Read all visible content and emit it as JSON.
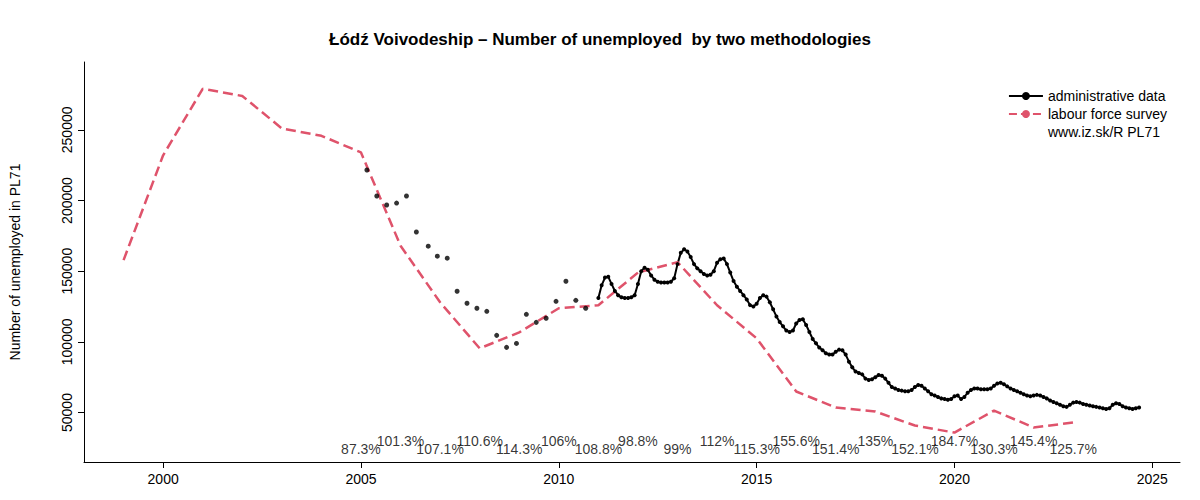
{
  "chart_data": {
    "type": "line",
    "title": "Łódź Voivodeship – Number of unemployed  by two methodologies",
    "y_label": "Number of unemployed in PL71",
    "source_note": "www.iz.sk/R PL71",
    "legend": "topright",
    "grid": false,
    "xlim": [
      1998,
      2025.7
    ],
    "xticks": [
      2000,
      2005,
      2010,
      2015,
      2020,
      2025
    ],
    "ylim": [
      15000,
      298000
    ],
    "yticks": [
      50000,
      100000,
      150000,
      200000,
      250000
    ],
    "series": [
      {
        "name": "administrative data",
        "type": "line",
        "color": "#000000",
        "marker": "circle",
        "line_style": "solid",
        "x": [
          2011.0,
          2011.083,
          2011.167,
          2011.25,
          2011.333,
          2011.417,
          2011.5,
          2011.583,
          2011.667,
          2011.75,
          2011.833,
          2011.917,
          2012.0,
          2012.083,
          2012.167,
          2012.25,
          2012.333,
          2012.417,
          2012.5,
          2012.583,
          2012.667,
          2012.75,
          2012.833,
          2012.917,
          2013.0,
          2013.083,
          2013.167,
          2013.25,
          2013.333,
          2013.417,
          2013.5,
          2013.583,
          2013.667,
          2013.75,
          2013.833,
          2013.917,
          2014.0,
          2014.083,
          2014.167,
          2014.25,
          2014.333,
          2014.417,
          2014.5,
          2014.583,
          2014.667,
          2014.75,
          2014.833,
          2014.917,
          2015.0,
          2015.083,
          2015.167,
          2015.25,
          2015.333,
          2015.417,
          2015.5,
          2015.583,
          2015.667,
          2015.75,
          2015.833,
          2015.917,
          2016.0,
          2016.083,
          2016.167,
          2016.25,
          2016.333,
          2016.417,
          2016.5,
          2016.583,
          2016.667,
          2016.75,
          2016.833,
          2016.917,
          2017.0,
          2017.083,
          2017.167,
          2017.25,
          2017.333,
          2017.417,
          2017.5,
          2017.583,
          2017.667,
          2017.75,
          2017.833,
          2017.917,
          2018.0,
          2018.083,
          2018.167,
          2018.25,
          2018.333,
          2018.417,
          2018.5,
          2018.583,
          2018.667,
          2018.75,
          2018.833,
          2018.917,
          2019.0,
          2019.083,
          2019.167,
          2019.25,
          2019.333,
          2019.417,
          2019.5,
          2019.583,
          2019.667,
          2019.75,
          2019.833,
          2019.917,
          2020.0,
          2020.083,
          2020.167,
          2020.25,
          2020.333,
          2020.417,
          2020.5,
          2020.583,
          2020.667,
          2020.75,
          2020.833,
          2020.917,
          2021.0,
          2021.083,
          2021.167,
          2021.25,
          2021.333,
          2021.417,
          2021.5,
          2021.583,
          2021.667,
          2021.75,
          2021.833,
          2021.917,
          2022.0,
          2022.083,
          2022.167,
          2022.25,
          2022.333,
          2022.417,
          2022.5,
          2022.583,
          2022.667,
          2022.75,
          2022.833,
          2022.917,
          2023.0,
          2023.083,
          2023.167,
          2023.25,
          2023.333,
          2023.417,
          2023.5,
          2023.583,
          2023.667,
          2023.75,
          2023.833,
          2023.917,
          2024.0,
          2024.083,
          2024.167,
          2024.25,
          2024.333,
          2024.417,
          2024.5,
          2024.583,
          2024.667
        ],
        "values": [
          131000,
          140000,
          145500,
          146000,
          141000,
          136000,
          133000,
          131500,
          131000,
          131000,
          131500,
          133000,
          141000,
          150000,
          152500,
          151000,
          147000,
          144000,
          142500,
          142000,
          142000,
          142000,
          142500,
          145000,
          155000,
          163000,
          165500,
          164000,
          160000,
          155000,
          152000,
          150000,
          148000,
          147000,
          147500,
          150000,
          156000,
          158500,
          159000,
          155000,
          149000,
          143000,
          139000,
          136000,
          133000,
          130000,
          126000,
          125000,
          127000,
          131000,
          133000,
          132000,
          128000,
          123000,
          118000,
          114000,
          111000,
          108000,
          107000,
          108000,
          113000,
          115500,
          116000,
          112000,
          107000,
          102000,
          99000,
          96000,
          94000,
          92000,
          91000,
          91000,
          93000,
          94500,
          94000,
          91000,
          86000,
          82000,
          79000,
          78000,
          77000,
          74000,
          73000,
          73500,
          75000,
          76500,
          76000,
          74000,
          71000,
          68000,
          67000,
          66000,
          65500,
          65000,
          65000,
          66000,
          68000,
          69500,
          69000,
          67000,
          65000,
          63000,
          62000,
          61000,
          60000,
          59500,
          59000,
          59500,
          61500,
          62000,
          59500,
          61000,
          64000,
          66000,
          67000,
          67000,
          66500,
          66500,
          66500,
          67000,
          69000,
          70500,
          71000,
          70000,
          68500,
          67000,
          66000,
          65000,
          64000,
          63000,
          62000,
          61500,
          62000,
          62500,
          62000,
          61000,
          60000,
          58500,
          57500,
          56500,
          55500,
          54500,
          54000,
          55500,
          57000,
          57500,
          57000,
          56000,
          55500,
          55000,
          54500,
          54000,
          53500,
          53000,
          52500,
          53000,
          55500,
          56500,
          56000,
          54500,
          53500,
          53000,
          52500,
          53000,
          53500
        ]
      },
      {
        "name": "administrative data",
        "type": "scatter",
        "color": "#000000",
        "marker": "circle",
        "x": [
          2005.15,
          2005.4,
          2005.65,
          2005.9,
          2006.15,
          2006.4,
          2006.7,
          2006.93,
          2007.18,
          2007.43,
          2007.68,
          2007.93,
          2008.18,
          2008.43,
          2008.68,
          2008.93,
          2009.18,
          2009.43,
          2009.68,
          2009.93,
          2010.18,
          2010.43,
          2010.68
        ],
        "values": [
          221600,
          203200,
          196800,
          198200,
          203200,
          177700,
          167700,
          160600,
          159200,
          135800,
          127300,
          123800,
          121600,
          104600,
          96100,
          98900,
          119500,
          113800,
          116700,
          128700,
          142900,
          129400,
          123800
        ]
      },
      {
        "name": "labour force survey",
        "type": "line",
        "color": "#DF536B",
        "marker": "none",
        "line_style": "dashed",
        "x": [
          1999,
          2000,
          2001,
          2002,
          2003,
          2004,
          2005,
          2006,
          2007,
          2008,
          2009,
          2010,
          2011,
          2012,
          2013,
          2014,
          2015,
          2016,
          2017,
          2018,
          2019,
          2020,
          2021,
          2022,
          2023
        ],
        "values": [
          157800,
          232000,
          279000,
          274000,
          251000,
          245800,
          234000,
          168000,
          128000,
          95400,
          106700,
          123800,
          125900,
          149000,
          156400,
          125900,
          102500,
          64900,
          53500,
          50700,
          40800,
          35800,
          51400,
          39400,
          42900
        ]
      }
    ],
    "annotations": [
      {
        "x": 2005,
        "y": 24000,
        "text": "87.3%"
      },
      {
        "x": 2006,
        "y": 30000,
        "text": "101.3%"
      },
      {
        "x": 2007,
        "y": 24000,
        "text": "107.1%"
      },
      {
        "x": 2008,
        "y": 30000,
        "text": "110.6%"
      },
      {
        "x": 2009,
        "y": 24000,
        "text": "114.3%"
      },
      {
        "x": 2010,
        "y": 30000,
        "text": "106%"
      },
      {
        "x": 2011,
        "y": 24000,
        "text": "108.8%"
      },
      {
        "x": 2012,
        "y": 30000,
        "text": "98.8%"
      },
      {
        "x": 2013,
        "y": 24000,
        "text": "99%"
      },
      {
        "x": 2014,
        "y": 30000,
        "text": "112%"
      },
      {
        "x": 2015,
        "y": 24000,
        "text": "115.3%"
      },
      {
        "x": 2016,
        "y": 30000,
        "text": "155.6%"
      },
      {
        "x": 2017,
        "y": 24000,
        "text": "151.4%"
      },
      {
        "x": 2018,
        "y": 30000,
        "text": "135%"
      },
      {
        "x": 2019,
        "y": 24000,
        "text": "152.1%"
      },
      {
        "x": 2020,
        "y": 30000,
        "text": "184.7%"
      },
      {
        "x": 2021,
        "y": 24000,
        "text": "130.3%"
      },
      {
        "x": 2022,
        "y": 30000,
        "text": "145.4%"
      },
      {
        "x": 2023,
        "y": 24000,
        "text": "125.7%"
      }
    ]
  }
}
